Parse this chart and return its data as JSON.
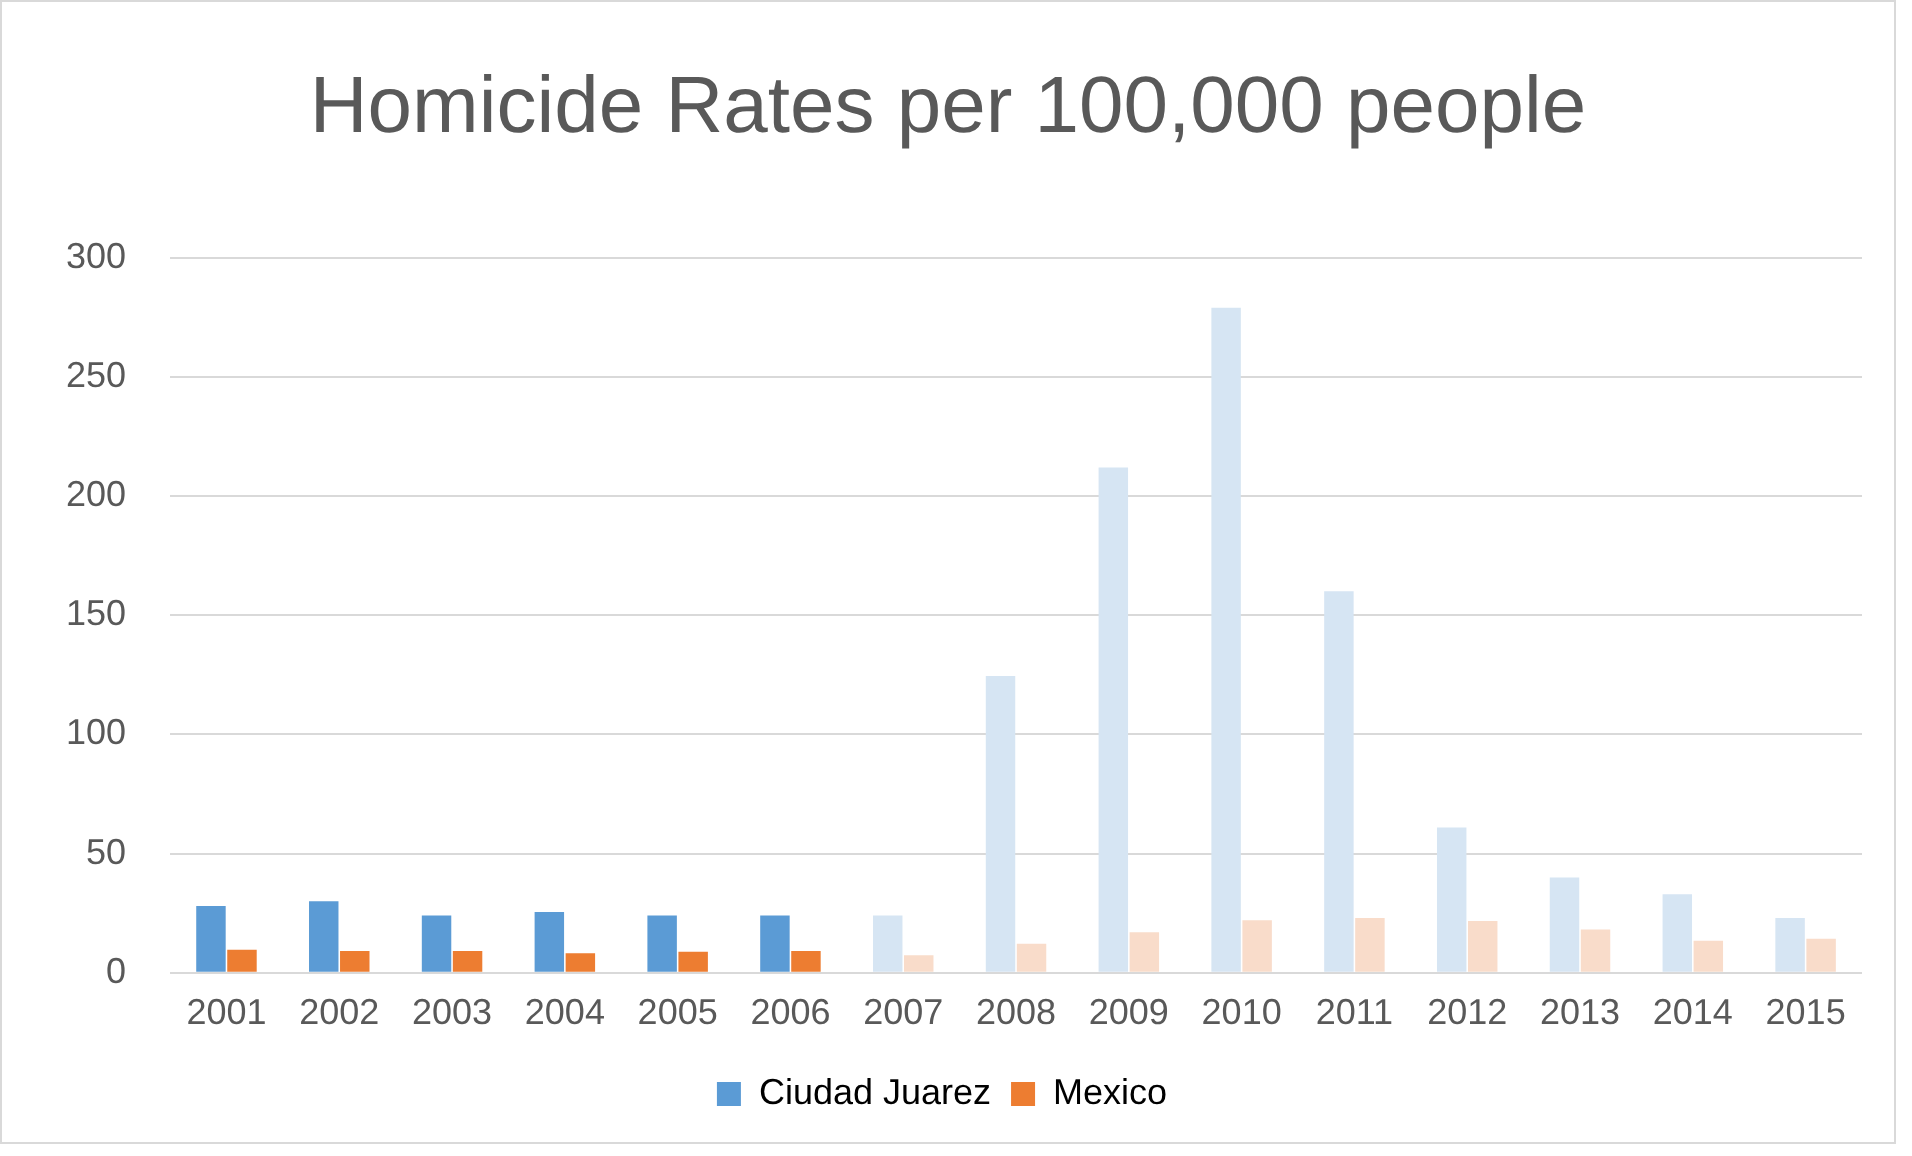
{
  "chart_data": {
    "type": "bar",
    "title": "Homicide Rates per 100,000 people",
    "categories": [
      "2001",
      "2002",
      "2003",
      "2004",
      "2005",
      "2006",
      "2007",
      "2008",
      "2009",
      "2010",
      "2011",
      "2012",
      "2013",
      "2014",
      "2015"
    ],
    "series": [
      {
        "name": "Ciudad Juarez",
        "color": "#5b9bd5",
        "colors": [
          "#5b9bd5",
          "#5b9bd5",
          "#5b9bd5",
          "#5b9bd5",
          "#5b9bd5",
          "#5b9bd5",
          "#d6e5f3",
          "#d6e5f3",
          "#d6e5f3",
          "#d6e5f3",
          "#d6e5f3",
          "#d6e5f3",
          "#d6e5f3",
          "#d6e5f3",
          "#d6e5f3"
        ],
        "values": [
          28,
          30,
          24,
          25.5,
          24,
          24,
          24,
          124.5,
          212,
          279,
          160,
          61,
          40,
          33,
          23
        ]
      },
      {
        "name": "Mexico",
        "color": "#ed7d31",
        "colors": [
          "#ed7d31",
          "#ed7d31",
          "#ed7d31",
          "#ed7d31",
          "#ed7d31",
          "#ed7d31",
          "#f9dcca",
          "#f9dcca",
          "#f9dcca",
          "#f9dcca",
          "#f9dcca",
          "#f9dcca",
          "#f9dcca",
          "#f9dcca",
          "#f9dcca"
        ],
        "values": [
          9.7,
          9.1,
          9.1,
          8.2,
          8.8,
          9.1,
          7.4,
          12.2,
          17,
          22,
          23,
          21.7,
          18.2,
          13.4,
          14.3
        ]
      }
    ],
    "ylim": [
      0,
      300
    ],
    "yticks": [
      0,
      50,
      100,
      150,
      200,
      250,
      300
    ],
    "grid": "y",
    "legend": "bottom"
  }
}
